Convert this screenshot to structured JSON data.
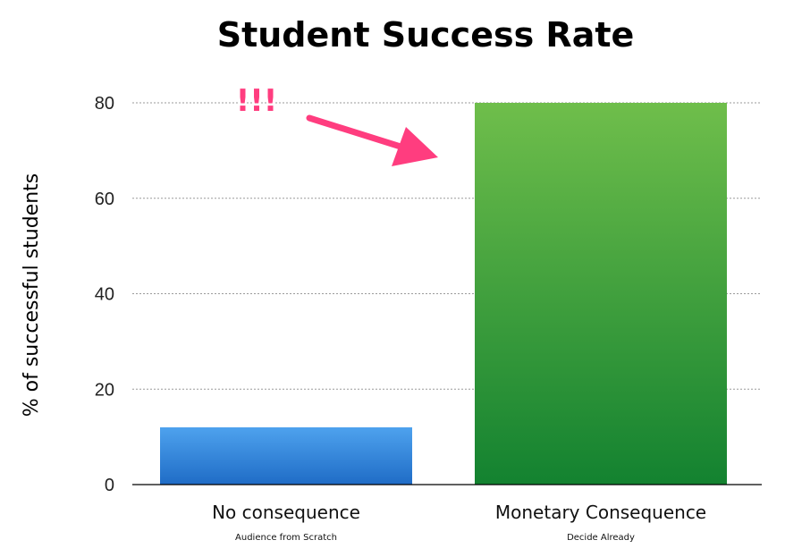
{
  "chart_data": {
    "type": "bar",
    "title": "Student Success Rate",
    "ylabel": "% of successful students",
    "xlabel": "",
    "ylim": [
      0,
      80
    ],
    "yticks": [
      0,
      20,
      40,
      60,
      80
    ],
    "grid": true,
    "categories": [
      "No consequence",
      "Monetary Consequence"
    ],
    "subtitles": [
      "Audience from Scratch",
      "Decide Already"
    ],
    "values": [
      12,
      80
    ],
    "colors": [
      {
        "top": "#4ea2ee",
        "bottom": "#1f6cc6"
      },
      {
        "top": "#6fbe4b",
        "bottom": "#138230"
      }
    ],
    "annotation": {
      "text": "!!!",
      "color": "#ff3d7f",
      "points_to": "Monetary Consequence"
    }
  }
}
